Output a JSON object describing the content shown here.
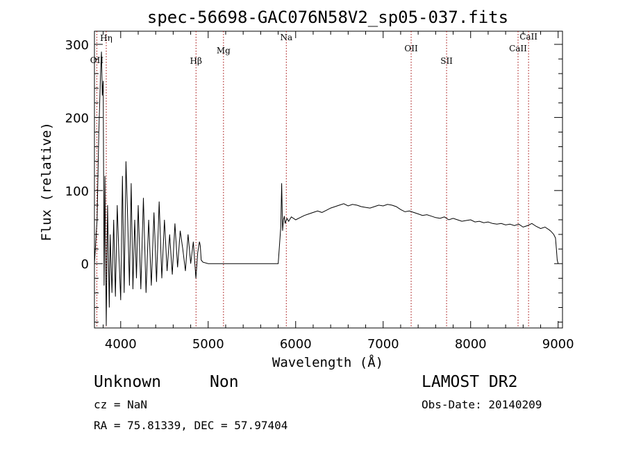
{
  "chart_data": {
    "type": "line",
    "title": "spec-56698-GAC076N58V2_sp05-037.fits",
    "xlabel": "Wavelength (Å)",
    "ylabel": "Flux (relative)",
    "xlim": [
      3700,
      9050
    ],
    "ylim": [
      -88,
      318
    ],
    "xticks": [
      4000,
      5000,
      6000,
      7000,
      8000,
      9000
    ],
    "yticks": [
      0,
      100,
      200,
      300
    ],
    "grid": false,
    "series": [
      {
        "x": [
          3700,
          3730,
          3750,
          3770,
          3780,
          3790,
          3800,
          3810,
          3820,
          3835,
          3850,
          3870,
          3880,
          3900,
          3920,
          3940,
          3960,
          3980,
          4000,
          4020,
          4040,
          4060,
          4080,
          4100,
          4120,
          4140,
          4160,
          4180,
          4200,
          4230,
          4260,
          4290,
          4320,
          4350,
          4380,
          4410,
          4440,
          4470,
          4500,
          4530,
          4560,
          4590,
          4620,
          4650,
          4680,
          4710,
          4740,
          4770,
          4800,
          4830,
          4860,
          4880,
          4900,
          4910,
          4920,
          4940,
          5000,
          5200,
          5400,
          5600,
          5800,
          5830,
          5840,
          5850,
          5860,
          5870,
          5880,
          5900,
          5920,
          5950,
          6000,
          6050,
          6100,
          6150,
          6200,
          6250,
          6300,
          6350,
          6400,
          6450,
          6500,
          6550,
          6600,
          6650,
          6700,
          6750,
          6800,
          6850,
          6900,
          6950,
          7000,
          7050,
          7100,
          7150,
          7200,
          7250,
          7300,
          7350,
          7400,
          7450,
          7500,
          7550,
          7600,
          7650,
          7700,
          7750,
          7800,
          7850,
          7900,
          7950,
          8000,
          8050,
          8100,
          8150,
          8200,
          8250,
          8300,
          8350,
          8400,
          8450,
          8500,
          8550,
          8600,
          8650,
          8700,
          8750,
          8800,
          8850,
          8900,
          8920,
          8950,
          8970,
          8980,
          8990,
          9000
        ],
        "y": [
          0,
          60,
          180,
          260,
          290,
          230,
          250,
          -30,
          120,
          -85,
          80,
          -60,
          40,
          -40,
          60,
          -45,
          80,
          10,
          -50,
          120,
          -40,
          140,
          60,
          -30,
          110,
          -35,
          60,
          -20,
          80,
          -35,
          90,
          -40,
          60,
          -30,
          70,
          -25,
          85,
          -20,
          60,
          -10,
          40,
          -15,
          55,
          -5,
          45,
          20,
          -10,
          40,
          0,
          30,
          -20,
          15,
          30,
          25,
          5,
          2,
          0,
          0,
          0,
          0,
          0,
          50,
          110,
          45,
          60,
          65,
          55,
          62,
          58,
          64,
          60,
          63,
          66,
          68,
          70,
          72,
          70,
          73,
          76,
          78,
          80,
          82,
          79,
          81,
          80,
          78,
          77,
          76,
          78,
          80,
          79,
          81,
          80,
          78,
          74,
          71,
          72,
          70,
          68,
          66,
          67,
          65,
          63,
          62,
          64,
          60,
          62,
          60,
          58,
          59,
          60,
          57,
          58,
          56,
          57,
          55,
          54,
          55,
          53,
          54,
          52,
          54,
          50,
          52,
          55,
          51,
          48,
          50,
          46,
          44,
          40,
          35,
          20,
          5,
          0
        ]
      }
    ],
    "lines": [
      {
        "label": "OII",
        "x": 3727
      },
      {
        "label": "Hη",
        "x": 3835
      },
      {
        "label": "Hβ",
        "x": 4861
      },
      {
        "label": "Mg",
        "x": 5175
      },
      {
        "label": "Na",
        "x": 5893
      },
      {
        "label": "OII",
        "x": 7320
      },
      {
        "label": "SII",
        "x": 7725
      },
      {
        "label": "CaII",
        "x": 8542
      },
      {
        "label": "CaII",
        "x": 8662
      }
    ]
  },
  "info": {
    "class_label": "Unknown",
    "subclass_label": "Non",
    "survey_label": "LAMOST DR2",
    "cz_label": "cz = NaN",
    "obsdate_label": "Obs-Date: 20140209",
    "radec_label": "RA =  75.81339, DEC =  57.97404"
  }
}
